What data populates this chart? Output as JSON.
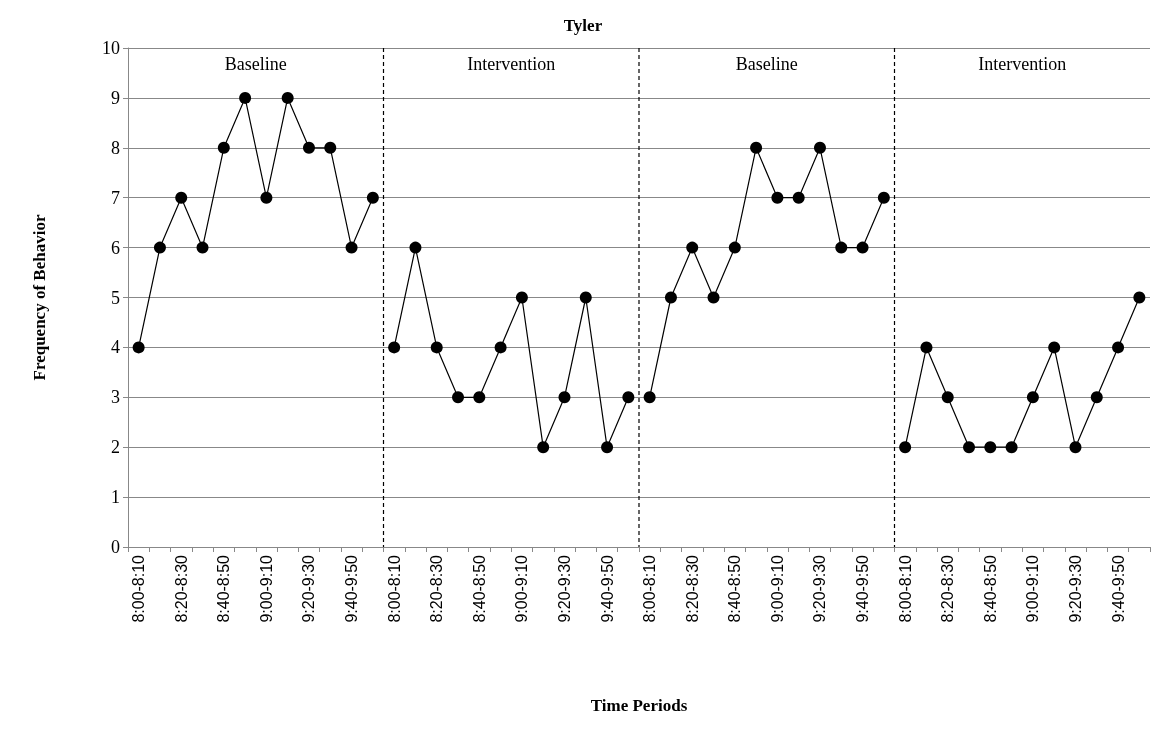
{
  "chart_data": {
    "type": "line",
    "title": "Tyler",
    "xlabel": "Time Periods",
    "ylabel": "Frequency of Behavior",
    "categories": [
      "8:00-8:10",
      null,
      "8:20-8:30",
      null,
      "8:40-8:50",
      null,
      "9:00-9:10",
      null,
      "9:20-9:30",
      null,
      "9:40-9:50",
      null,
      "8:00-8:10",
      null,
      "8:20-8:30",
      null,
      "8:40-8:50",
      null,
      "9:00-9:10",
      null,
      "9:20-9:30",
      null,
      "9:40-9:50",
      null,
      "8:00-8:10",
      null,
      "8:20-8:30",
      null,
      "8:40-8:50",
      null,
      "9:00-9:10",
      null,
      "9:20-9:30",
      null,
      "9:40-9:50",
      null,
      "8:00-8:10",
      null,
      "8:20-8:30",
      null,
      "8:40-8:50",
      null,
      "9:00-9:10",
      null,
      "9:20-9:30",
      null,
      "9:40-9:50",
      null
    ],
    "ylim": [
      0,
      10
    ],
    "yticks": [
      0,
      1,
      2,
      3,
      4,
      5,
      6,
      7,
      8,
      9,
      10
    ],
    "grid": "y",
    "marker": "circle",
    "line_style": "solid",
    "series": [
      {
        "color": "#000000",
        "values": [
          4,
          6,
          7,
          6,
          8,
          9,
          7,
          9,
          8,
          8,
          6,
          7,
          null,
          null,
          null,
          null,
          null,
          null,
          null,
          null,
          null,
          null,
          null,
          null,
          null,
          null,
          null,
          null,
          null,
          null,
          null,
          null,
          null,
          null,
          null,
          null,
          null,
          null,
          null,
          null,
          null,
          null,
          null,
          null,
          null,
          null,
          null,
          null
        ]
      },
      {
        "color": "#000000",
        "values": [
          null,
          null,
          null,
          null,
          null,
          null,
          null,
          null,
          null,
          null,
          null,
          null,
          4,
          6,
          4,
          3,
          3,
          4,
          5,
          2,
          3,
          5,
          2,
          3,
          null,
          null,
          null,
          null,
          null,
          null,
          null,
          null,
          null,
          null,
          null,
          null,
          null,
          null,
          null,
          null,
          null,
          null,
          null,
          null,
          null,
          null,
          null,
          null
        ]
      },
      {
        "color": "#000000",
        "values": [
          null,
          null,
          null,
          null,
          null,
          null,
          null,
          null,
          null,
          null,
          null,
          null,
          null,
          null,
          null,
          null,
          null,
          null,
          null,
          null,
          null,
          null,
          null,
          null,
          3,
          5,
          6,
          5,
          6,
          8,
          7,
          7,
          8,
          6,
          6,
          7,
          null,
          null,
          null,
          null,
          null,
          null,
          null,
          null,
          null,
          null,
          null,
          null
        ]
      },
      {
        "color": "#000000",
        "values": [
          null,
          null,
          null,
          null,
          null,
          null,
          null,
          null,
          null,
          null,
          null,
          null,
          null,
          null,
          null,
          null,
          null,
          null,
          null,
          null,
          null,
          null,
          null,
          null,
          null,
          null,
          null,
          null,
          null,
          null,
          null,
          null,
          null,
          null,
          null,
          null,
          2,
          4,
          3,
          2,
          2,
          2,
          3,
          4,
          2,
          3,
          4,
          5
        ]
      }
    ],
    "annotations": [
      "Baseline",
      "Intervention",
      "Baseline",
      "Intervention"
    ]
  }
}
